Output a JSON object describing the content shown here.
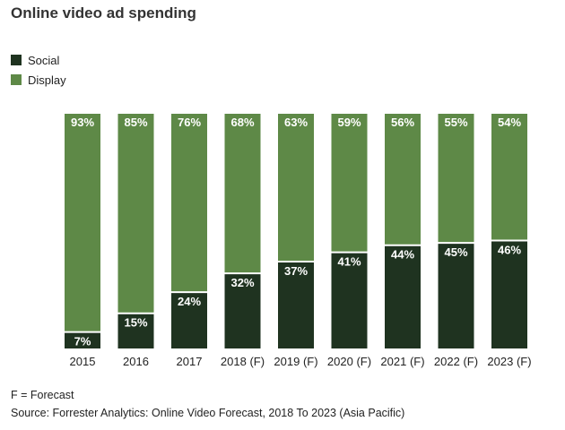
{
  "colors": {
    "social": "#1f3320",
    "display": "#5e8947",
    "label_text": "#ffffff",
    "axis_text": "#222222"
  },
  "chart_data": {
    "type": "bar",
    "stacked": true,
    "title": "Online video ad spending",
    "categories": [
      "2015",
      "2016",
      "2017",
      "2018 (F)",
      "2019 (F)",
      "2020 (F)",
      "2021 (F)",
      "2022 (F)",
      "2023 (F)"
    ],
    "series": [
      {
        "name": "Social",
        "values": [
          7,
          15,
          24,
          32,
          37,
          41,
          44,
          45,
          46
        ]
      },
      {
        "name": "Display",
        "values": [
          93,
          85,
          76,
          68,
          63,
          59,
          56,
          55,
          54
        ]
      }
    ],
    "value_suffix": "%",
    "ylim": [
      0,
      100
    ],
    "xlabel": "",
    "ylabel": "",
    "legend_position": "top-left",
    "grid": false
  },
  "footnotes": {
    "forecast": "F = Forecast",
    "source": "Source: Forrester Analytics: Online Video Forecast, 2018 To 2023 (Asia Pacific)"
  }
}
